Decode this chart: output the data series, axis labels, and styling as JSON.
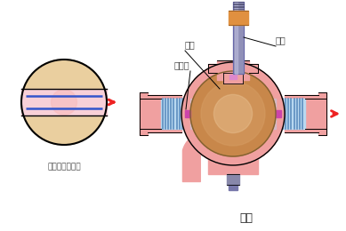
{
  "title": "球阀",
  "left_label": "球体俯视剖面图",
  "label_qiuti": "球体",
  "label_mifengzuo": "密封座",
  "label_faguan": "阀杆",
  "bg_color": "#ffffff",
  "body_color": "#f0a0a0",
  "body_edge": "#c06060",
  "ball_color": "#c8874a",
  "ball_mid": "#d49a60",
  "ball_light": "#e8c090",
  "stripe_bg": "#b8d8f0",
  "stripe_line": "#5588bb",
  "stem_color": "#9090b8",
  "stem_edge": "#6666aa",
  "orange_cap": "#e09040",
  "seal_color": "#cc44aa",
  "left_ball_bg": "#f2ddb0",
  "left_rect_fill": "#f8d0d8",
  "left_ball_center": "#f5c8c8",
  "blue_line": "#3355cc",
  "red_arrow": "#ee2222",
  "label_color": "#444444",
  "line_color": "#222222"
}
